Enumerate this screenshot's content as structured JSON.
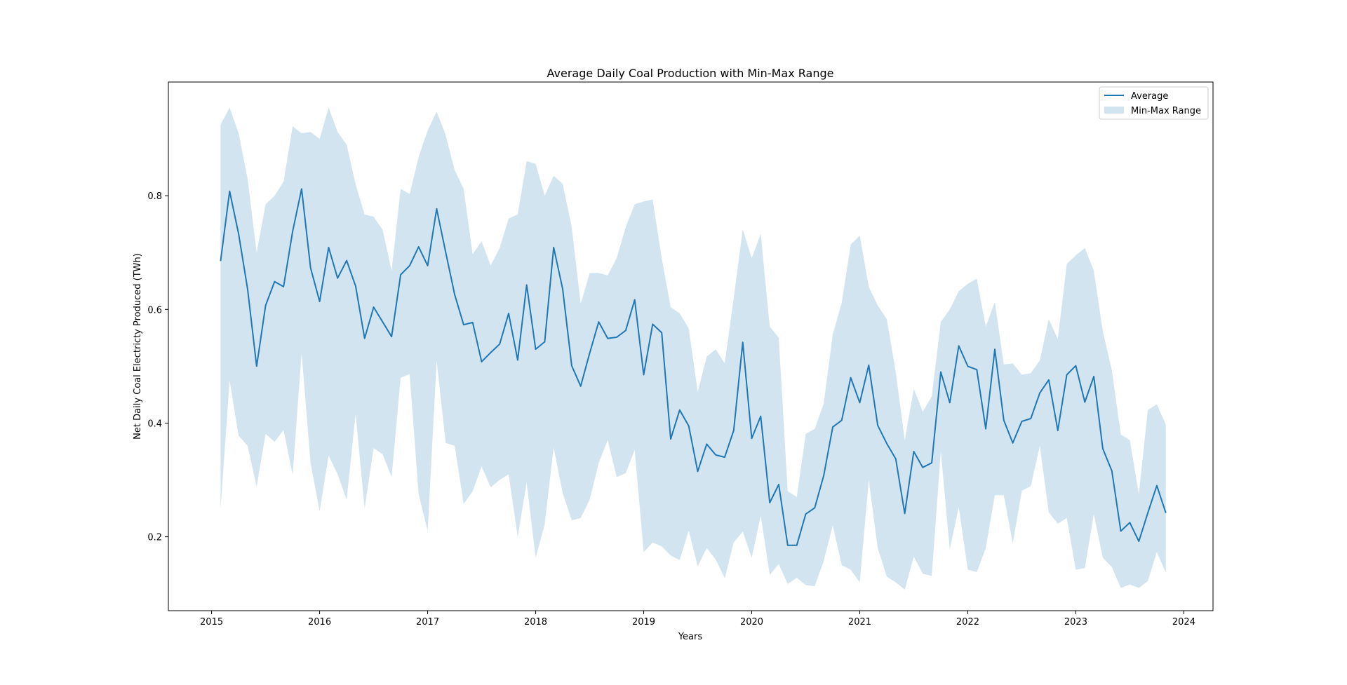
{
  "chart_data": {
    "type": "area",
    "title": "Average Daily Coal Production with Min-Max Range",
    "xlabel": "Years",
    "ylabel": "Net Daily Coal Electricty Produced (TWh)",
    "xlim": [
      2014.6,
      2024.27
    ],
    "ylim": [
      0.07,
      1.0
    ],
    "x_ticks": [
      2015,
      2016,
      2017,
      2018,
      2019,
      2020,
      2021,
      2022,
      2023,
      2024
    ],
    "x_tick_labels": [
      "2015",
      "2016",
      "2017",
      "2018",
      "2019",
      "2020",
      "2021",
      "2022",
      "2023",
      "2024"
    ],
    "y_ticks": [
      0.2,
      0.4,
      0.6,
      0.8
    ],
    "y_tick_labels": [
      "0.2",
      "0.4",
      "0.6",
      "0.8"
    ],
    "grid": false,
    "legend_position": "top-right",
    "x_start": "2015-02",
    "x_step": "monthly",
    "series": [
      {
        "name": "Average",
        "kind": "line",
        "color": "#1f77b4",
        "values": [
          0.685,
          0.808,
          0.733,
          0.636,
          0.5,
          0.607,
          0.649,
          0.64,
          0.737,
          0.812,
          0.673,
          0.614,
          0.709,
          0.655,
          0.686,
          0.641,
          0.549,
          0.604,
          0.578,
          0.552,
          0.661,
          0.677,
          0.71,
          0.677,
          0.777,
          0.701,
          0.626,
          0.573,
          0.577,
          0.508,
          0.524,
          0.539,
          0.593,
          0.511,
          0.643,
          0.53,
          0.543,
          0.709,
          0.636,
          0.501,
          0.465,
          0.523,
          0.578,
          0.549,
          0.551,
          0.563,
          0.617,
          0.485,
          0.574,
          0.559,
          0.372,
          0.423,
          0.395,
          0.315,
          0.363,
          0.344,
          0.34,
          0.387,
          0.542,
          0.373,
          0.412,
          0.26,
          0.292,
          0.185,
          0.185,
          0.24,
          0.251,
          0.308,
          0.393,
          0.405,
          0.48,
          0.436,
          0.502,
          0.396,
          0.364,
          0.337,
          0.241,
          0.35,
          0.322,
          0.33,
          0.49,
          0.436,
          0.536,
          0.5,
          0.494,
          0.39,
          0.53,
          0.405,
          0.365,
          0.403,
          0.408,
          0.453,
          0.476,
          0.387,
          0.485,
          0.501,
          0.437,
          0.482,
          0.355,
          0.316,
          0.21,
          0.225,
          0.192,
          0.242,
          0.29,
          0.242
        ]
      },
      {
        "name": "Min-Max Range",
        "kind": "band",
        "color": "#1f77b4",
        "opacity": 0.2,
        "upper": [
          0.925,
          0.955,
          0.91,
          0.83,
          0.7,
          0.785,
          0.8,
          0.825,
          0.922,
          0.91,
          0.912,
          0.9,
          0.955,
          0.912,
          0.89,
          0.82,
          0.767,
          0.763,
          0.74,
          0.668,
          0.812,
          0.803,
          0.868,
          0.915,
          0.948,
          0.907,
          0.845,
          0.812,
          0.697,
          0.72,
          0.677,
          0.708,
          0.76,
          0.767,
          0.861,
          0.856,
          0.8,
          0.835,
          0.821,
          0.745,
          0.61,
          0.664,
          0.664,
          0.66,
          0.69,
          0.745,
          0.785,
          0.79,
          0.793,
          0.69,
          0.604,
          0.593,
          0.567,
          0.455,
          0.517,
          0.53,
          0.505,
          0.62,
          0.741,
          0.69,
          0.733,
          0.57,
          0.55,
          0.28,
          0.27,
          0.381,
          0.39,
          0.435,
          0.556,
          0.612,
          0.714,
          0.73,
          0.64,
          0.607,
          0.583,
          0.49,
          0.37,
          0.46,
          0.42,
          0.447,
          0.578,
          0.6,
          0.632,
          0.645,
          0.654,
          0.57,
          0.613,
          0.503,
          0.505,
          0.485,
          0.488,
          0.51,
          0.583,
          0.548,
          0.68,
          0.695,
          0.708,
          0.668,
          0.562,
          0.493,
          0.38,
          0.37,
          0.275,
          0.423,
          0.433,
          0.397
        ],
        "lower": [
          0.25,
          0.475,
          0.378,
          0.36,
          0.288,
          0.381,
          0.367,
          0.388,
          0.309,
          0.523,
          0.33,
          0.245,
          0.343,
          0.31,
          0.265,
          0.416,
          0.25,
          0.356,
          0.345,
          0.305,
          0.48,
          0.486,
          0.275,
          0.21,
          0.51,
          0.365,
          0.36,
          0.258,
          0.28,
          0.324,
          0.287,
          0.3,
          0.31,
          0.2,
          0.295,
          0.163,
          0.222,
          0.357,
          0.277,
          0.229,
          0.233,
          0.265,
          0.33,
          0.37,
          0.305,
          0.312,
          0.353,
          0.173,
          0.19,
          0.183,
          0.167,
          0.159,
          0.211,
          0.148,
          0.18,
          0.16,
          0.127,
          0.19,
          0.209,
          0.163,
          0.237,
          0.133,
          0.152,
          0.117,
          0.128,
          0.115,
          0.113,
          0.158,
          0.22,
          0.15,
          0.142,
          0.12,
          0.3,
          0.18,
          0.13,
          0.12,
          0.107,
          0.165,
          0.135,
          0.131,
          0.35,
          0.178,
          0.252,
          0.142,
          0.138,
          0.18,
          0.273,
          0.273,
          0.188,
          0.281,
          0.289,
          0.36,
          0.243,
          0.223,
          0.233,
          0.142,
          0.145,
          0.24,
          0.163,
          0.147,
          0.11,
          0.116,
          0.11,
          0.122,
          0.173,
          0.137
        ]
      }
    ]
  }
}
